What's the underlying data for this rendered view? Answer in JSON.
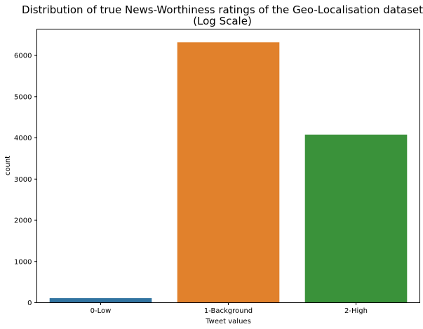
{
  "chart_data": {
    "type": "bar",
    "title": [
      "Distribution of true News-Worthiness ratings of the Geo-Localisation dataset",
      "(Log Scale)"
    ],
    "xlabel": "Tweet values",
    "ylabel": "count",
    "categories": [
      "0-Low",
      "1-Background",
      "2-High"
    ],
    "values": [
      110,
      6320,
      4080
    ],
    "colors": [
      "#3274a1",
      "#e1812c",
      "#3a923a"
    ],
    "ylim": [
      0,
      6640
    ],
    "yticks": [
      0,
      1000,
      2000,
      3000,
      4000,
      5000,
      6000
    ],
    "grid": false,
    "legend": "none"
  }
}
